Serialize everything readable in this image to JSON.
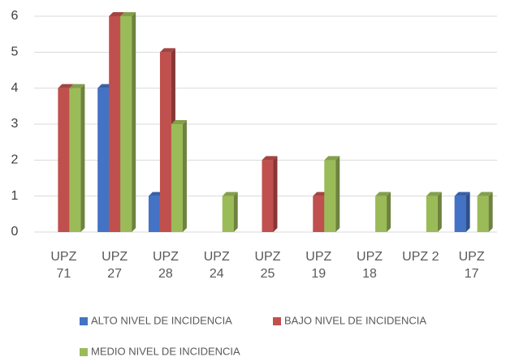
{
  "chart_data": {
    "type": "bar",
    "categories": [
      "UPZ 71",
      "UPZ 27",
      "UPZ 28",
      "UPZ 24",
      "UPZ 25",
      "UPZ 19",
      "UPZ 18",
      "UPZ 2",
      "UPZ 17"
    ],
    "series": [
      {
        "name": "ALTO NIVEL DE INCIDENCIA",
        "color": "#4472c4",
        "values": [
          0,
          4,
          1,
          0,
          0,
          0,
          0,
          0,
          1
        ]
      },
      {
        "name": "BAJO NIVEL DE INCIDENCIA",
        "color": "#c0504d",
        "values": [
          4,
          6,
          5,
          0,
          2,
          1,
          0,
          0,
          0
        ]
      },
      {
        "name": "MEDIO NIVEL DE INCIDENCIA",
        "color": "#9bbb59",
        "values": [
          4,
          6,
          3,
          1,
          0,
          2,
          1,
          1,
          1
        ]
      }
    ],
    "ylim": [
      0,
      6
    ],
    "yticks": [
      0,
      1,
      2,
      3,
      4,
      5,
      6
    ],
    "grid": true,
    "legend": "bottom"
  }
}
